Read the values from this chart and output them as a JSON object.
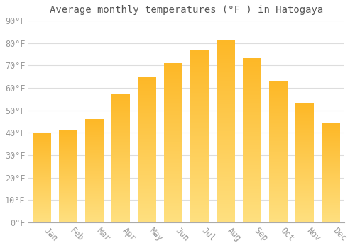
{
  "title": "Average monthly temperatures (°F ) in Hatogaya",
  "categories": [
    "Jan",
    "Feb",
    "Mar",
    "Apr",
    "May",
    "Jun",
    "Jul",
    "Aug",
    "Sep",
    "Oct",
    "Nov",
    "Dec"
  ],
  "values": [
    40.0,
    41.0,
    46.0,
    57.0,
    65.0,
    71.0,
    77.0,
    81.0,
    73.0,
    63.0,
    53.0,
    44.0
  ],
  "bar_color": "#FDB827",
  "bar_color_bottom": "#FFE080",
  "ylim": [
    0,
    90
  ],
  "yticks": [
    0,
    10,
    20,
    30,
    40,
    50,
    60,
    70,
    80,
    90
  ],
  "ytick_labels": [
    "0°F",
    "10°F",
    "20°F",
    "30°F",
    "40°F",
    "50°F",
    "60°F",
    "70°F",
    "80°F",
    "90°F"
  ],
  "background_color": "#FFFFFF",
  "plot_bg_color": "#FFFFFF",
  "grid_color": "#DDDDDD",
  "title_fontsize": 10,
  "tick_fontsize": 8.5,
  "tick_color": "#999999"
}
